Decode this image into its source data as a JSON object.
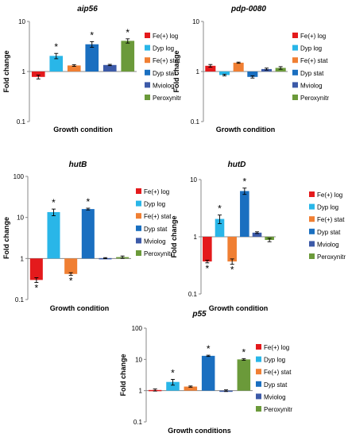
{
  "chart_data": [
    {
      "type": "bar",
      "title": "aip56",
      "xlabel": "Growth condition",
      "ylabel": "Fold change",
      "yscale": "log",
      "ylim": [
        0.1,
        10
      ],
      "yticks": [
        "10",
        "1",
        "0.1"
      ],
      "categories": [
        "Fe(+) log",
        "Dyp log",
        "Fe(+) stat",
        "Dyp stat",
        "Mviolog",
        "Peroxynitr"
      ],
      "values": [
        0.78,
        2.05,
        1.32,
        3.5,
        1.35,
        4.1
      ],
      "errors": [
        0.07,
        0.25,
        0.05,
        0.45,
        0.04,
        0.4
      ],
      "significant": [
        false,
        true,
        false,
        true,
        false,
        true
      ],
      "colors": [
        "#e41a1c",
        "#29b6e8",
        "#f07f33",
        "#1a6fc0",
        "#3c5aa8",
        "#6b9a3a"
      ],
      "legend_position": "right"
    },
    {
      "type": "bar",
      "title": "pdp-0080",
      "xlabel": "Growth condition",
      "ylabel": "Fold change",
      "yscale": "log",
      "ylim": [
        0.1,
        10
      ],
      "yticks": [
        "10",
        "1",
        "0.1"
      ],
      "categories": [
        "Fe(+) log",
        "Dyp log",
        "Fe(+) stat",
        "Dyp stat",
        "Mviolog",
        "Peroxynitr"
      ],
      "values": [
        1.3,
        0.85,
        1.5,
        0.78,
        1.12,
        1.18
      ],
      "errors": [
        0.08,
        0.03,
        0.04,
        0.04,
        0.05,
        0.07
      ],
      "significant": [
        false,
        false,
        false,
        false,
        false,
        false
      ],
      "colors": [
        "#e41a1c",
        "#29b6e8",
        "#f07f33",
        "#1a6fc0",
        "#3c5aa8",
        "#6b9a3a"
      ],
      "legend_position": "right"
    },
    {
      "type": "bar",
      "title": "hutB",
      "xlabel": "Growth condition",
      "ylabel": "Fold change",
      "yscale": "log",
      "ylim": [
        0.1,
        100
      ],
      "yticks": [
        "100",
        "10",
        "1",
        "0.1"
      ],
      "categories": [
        "Fe(+) log",
        "Dyp log",
        "Fe(+) stat",
        "Dyp stat",
        "Mviolog",
        "Peroxynitr"
      ],
      "values": [
        0.3,
        13.5,
        0.42,
        16.0,
        1.02,
        1.08
      ],
      "errors": [
        0.04,
        2.5,
        0.03,
        0.8,
        0.03,
        0.07
      ],
      "significant": [
        true,
        true,
        true,
        true,
        false,
        false
      ],
      "colors": [
        "#e41a1c",
        "#29b6e8",
        "#f07f33",
        "#1a6fc0",
        "#3c5aa8",
        "#6b9a3a"
      ],
      "legend_position": "right"
    },
    {
      "type": "bar",
      "title": "hutD",
      "xlabel": "Growth condition",
      "ylabel": "Fold change",
      "yscale": "log",
      "ylim": [
        0.1,
        10
      ],
      "yticks": [
        "10",
        "1",
        "0.1"
      ],
      "categories": [
        "Fe(+) log",
        "Dyp log",
        "Fe(+) stat",
        "Dyp stat",
        "Mviolog",
        "Peroxynitr"
      ],
      "values": [
        0.37,
        2.05,
        0.37,
        6.3,
        1.18,
        0.88
      ],
      "errors": [
        0.02,
        0.35,
        0.04,
        0.8,
        0.04,
        0.06
      ],
      "significant": [
        true,
        true,
        true,
        true,
        false,
        false
      ],
      "colors": [
        "#e41a1c",
        "#29b6e8",
        "#f07f33",
        "#1a6fc0",
        "#3c5aa8",
        "#6b9a3a"
      ],
      "legend_position": "right"
    },
    {
      "type": "bar",
      "title": "p55",
      "xlabel": "Growth conditions",
      "ylabel": "Fold change",
      "yscale": "log",
      "ylim": [
        0.1,
        100
      ],
      "yticks": [
        "100",
        "10",
        "1",
        "0.1"
      ],
      "categories": [
        "Fe(+) log",
        "Dyp log",
        "Fe(+) stat",
        "Dyp stat",
        "Mviolog",
        "Peroxynitr"
      ],
      "values": [
        1.05,
        1.9,
        1.35,
        13.0,
        1.0,
        10.0
      ],
      "errors": [
        0.08,
        0.4,
        0.06,
        0.6,
        0.06,
        0.6
      ],
      "significant": [
        false,
        true,
        false,
        true,
        false,
        true
      ],
      "colors": [
        "#e41a1c",
        "#29b6e8",
        "#f07f33",
        "#1a6fc0",
        "#3c5aa8",
        "#6b9a3a"
      ],
      "legend_position": "right"
    }
  ],
  "significance_marker": "*"
}
